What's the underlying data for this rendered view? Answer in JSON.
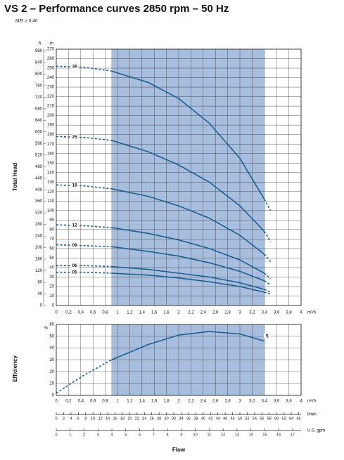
{
  "title": "VS 2 – Performance curves 2850 rpm – 50 Hz",
  "subtitle": "MEI ≥ 0,40",
  "chart_data": [
    {
      "type": "line",
      "ylabel": "Total Head",
      "x_unit": "m³/h",
      "y_unit": "m",
      "y2_unit": "ft",
      "xlim": [
        0,
        4
      ],
      "ylim": [
        0,
        270
      ],
      "y2lim": [
        0,
        885.8
      ],
      "shaded_range": [
        0.9,
        3.4
      ],
      "grid": true,
      "xticks": [
        0,
        {
          "value": 0.2,
          "label": "0,2"
        },
        {
          "value": 0.4,
          "label": "0,4"
        },
        {
          "value": 0.6,
          "label": "0,6"
        },
        {
          "value": 0.8,
          "label": "0,8"
        },
        1,
        {
          "value": 1.2,
          "label": "1,2"
        },
        {
          "value": 1.4,
          "label": "1,4"
        },
        {
          "value": 1.6,
          "label": "1,6"
        },
        {
          "value": 1.8,
          "label": "1,8"
        },
        2,
        {
          "value": 2.2,
          "label": "2,2"
        },
        {
          "value": 2.4,
          "label": "2,4"
        },
        {
          "value": 2.6,
          "label": "2,6"
        },
        {
          "value": 2.8,
          "label": "2,8"
        },
        3,
        {
          "value": 3.2,
          "label": "3,2"
        },
        {
          "value": 3.4,
          "label": "3,4"
        },
        {
          "value": 3.6,
          "label": "3,6"
        },
        {
          "value": 3.8,
          "label": "3,8"
        },
        4
      ],
      "yticks": [
        0,
        10,
        20,
        30,
        40,
        50,
        60,
        70,
        80,
        90,
        100,
        110,
        120,
        130,
        140,
        150,
        160,
        170,
        180,
        190,
        200,
        210,
        220,
        230,
        240,
        250,
        260,
        270
      ],
      "y2ticks": [
        0,
        40,
        80,
        120,
        160,
        200,
        240,
        280,
        320,
        360,
        400,
        440,
        480,
        520,
        560,
        600,
        640,
        680,
        720,
        760,
        800,
        840,
        880
      ],
      "series": [
        {
          "name": "36",
          "color": "#1d5f8e",
          "x": [
            0,
            0.45,
            0.9,
            1.5,
            2,
            2.5,
            3,
            3.4,
            3.5
          ],
          "values": [
            252,
            251,
            247,
            235,
            218,
            192,
            155,
            112,
            100
          ]
        },
        {
          "name": "25",
          "color": "#1d5f8e",
          "x": [
            0,
            0.45,
            0.9,
            1.5,
            2,
            2.5,
            3,
            3.4,
            3.5
          ],
          "values": [
            178,
            177,
            174,
            162,
            148,
            130,
            105,
            78,
            67
          ]
        },
        {
          "name": "18",
          "color": "#1d5f8e",
          "x": [
            0,
            0.45,
            0.9,
            1.5,
            2,
            2.5,
            3,
            3.4,
            3.5
          ],
          "values": [
            127,
            126,
            123,
            115,
            105,
            92,
            74,
            54,
            46
          ]
        },
        {
          "name": "12",
          "color": "#1d5f8e",
          "x": [
            0,
            0.45,
            0.9,
            1.5,
            2,
            2.5,
            3,
            3.4,
            3.5
          ],
          "values": [
            85,
            84,
            82,
            76,
            69,
            60,
            48,
            34,
            28
          ]
        },
        {
          "name": "09",
          "color": "#1d5f8e",
          "x": [
            0,
            0.45,
            0.9,
            1.5,
            2,
            2.5,
            3,
            3.4,
            3.5
          ],
          "values": [
            64,
            63,
            62,
            57,
            52,
            45,
            36,
            26,
            22
          ]
        },
        {
          "name": "06",
          "color": "#1d5f8e",
          "x": [
            0,
            0.45,
            0.9,
            1.5,
            2,
            2.5,
            3,
            3.4,
            3.5
          ],
          "values": [
            42,
            42,
            41,
            38,
            34,
            30,
            24,
            17,
            14
          ]
        },
        {
          "name": "05",
          "color": "#1d5f8e",
          "x": [
            0,
            0.45,
            0.9,
            1.5,
            2,
            2.5,
            3,
            3.4,
            3.5
          ],
          "values": [
            35,
            35,
            34,
            32,
            29,
            25,
            20,
            14,
            12
          ]
        }
      ]
    },
    {
      "type": "line",
      "ylabel": "Efficiency",
      "x_unit": "m³/h",
      "y_unit": "%",
      "xlabel": "Flow",
      "xlim": [
        0,
        4
      ],
      "ylim": [
        0,
        60
      ],
      "shaded_range": [
        0.9,
        3.4
      ],
      "grid": true,
      "xticks": [
        0,
        {
          "value": 0.2,
          "label": "0,2"
        },
        {
          "value": 0.4,
          "label": "0,4"
        },
        {
          "value": 0.6,
          "label": "0,6"
        },
        {
          "value": 0.8,
          "label": "0,8"
        },
        1,
        {
          "value": 1.2,
          "label": "1,2"
        },
        {
          "value": 1.4,
          "label": "1,4"
        },
        {
          "value": 1.6,
          "label": "1,6"
        },
        {
          "value": 1.8,
          "label": "1,8"
        },
        2,
        {
          "value": 2.2,
          "label": "2,2"
        },
        {
          "value": 2.4,
          "label": "2,4"
        },
        {
          "value": 2.6,
          "label": "2,6"
        },
        {
          "value": 2.8,
          "label": "2,8"
        },
        3,
        {
          "value": 3.2,
          "label": "3,2"
        },
        {
          "value": 3.4,
          "label": "3,4"
        },
        {
          "value": 3.6,
          "label": "3,6"
        },
        {
          "value": 3.8,
          "label": "3,8"
        },
        4
      ],
      "yticks": [
        0,
        10,
        20,
        30,
        40,
        50,
        60
      ],
      "series": [
        {
          "name": "η",
          "color": "#1d5f8e",
          "x": [
            0,
            0.45,
            0.9,
            1.5,
            2,
            2.5,
            3,
            3.4
          ],
          "values": [
            2,
            17,
            30,
            43,
            51,
            54,
            52,
            46
          ]
        }
      ],
      "lpm_axis": {
        "label": "l/min",
        "lim": [
          0,
          66.67
        ],
        "ticks": [
          0,
          2,
          4,
          6,
          8,
          10,
          12,
          14,
          16,
          18,
          20,
          22,
          24,
          26,
          28,
          30,
          32,
          34,
          36,
          38,
          40,
          42,
          44,
          46,
          48,
          50,
          52,
          54,
          56,
          58,
          60,
          62,
          64,
          66
        ]
      },
      "gpm_axis": {
        "label": "U.S. gpm",
        "lim": [
          0,
          17.61
        ],
        "ticks": [
          0,
          1,
          2,
          3,
          4,
          5,
          6,
          7,
          8,
          9,
          10,
          11,
          12,
          13,
          14,
          15,
          16,
          17
        ]
      }
    }
  ]
}
